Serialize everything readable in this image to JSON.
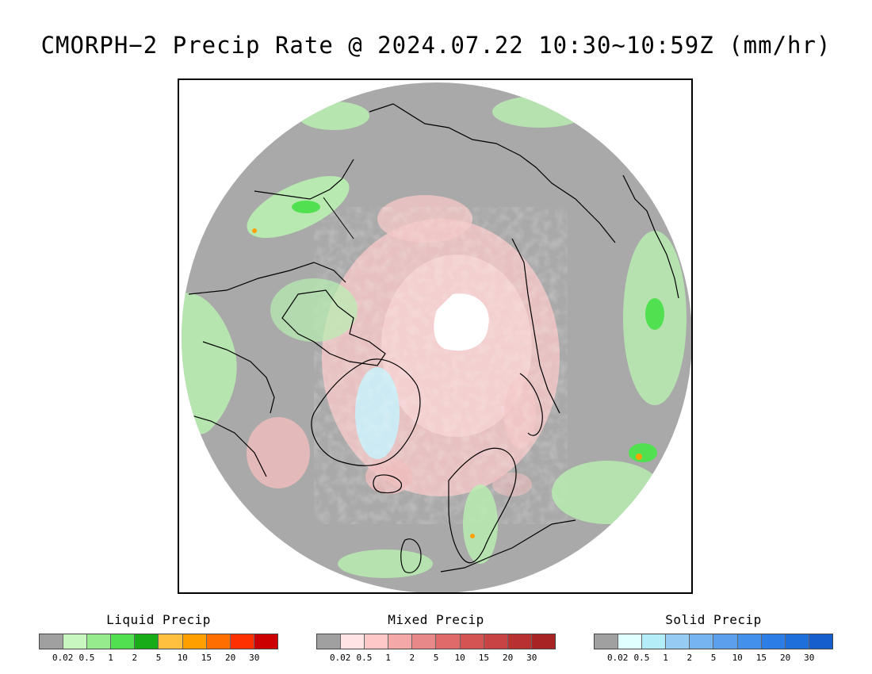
{
  "title": "CMORPH−2 Precip Rate @ 2024.07.22 10:30∼10:59Z (mm/hr)",
  "legends": [
    {
      "id": "liquid",
      "title": "Liquid Precip",
      "colors": [
        "#a0a0a0",
        "#c8f8c0",
        "#96ec8c",
        "#50e050",
        "#18ac18",
        "#ffc040",
        "#ffa000",
        "#ff6e00",
        "#ff3000",
        "#cc0000"
      ],
      "labels": [
        "0.02",
        "0.5",
        "1",
        "2",
        "5",
        "10",
        "15",
        "20",
        "30"
      ]
    },
    {
      "id": "mixed",
      "title": "Mixed Precip",
      "colors": [
        "#a0a0a0",
        "#ffe4e4",
        "#ffc8c8",
        "#f4a8a8",
        "#e88888",
        "#e06a6a",
        "#d45454",
        "#c84444",
        "#b83030",
        "#a82424"
      ],
      "labels": [
        "0.02",
        "0.5",
        "1",
        "2",
        "5",
        "10",
        "15",
        "20",
        "30"
      ]
    },
    {
      "id": "solid",
      "title": "Solid Precip",
      "colors": [
        "#a0a0a0",
        "#e0ffff",
        "#b4ecf8",
        "#96ccf4",
        "#76b4f0",
        "#5aa0ec",
        "#4290ea",
        "#2c7ee6",
        "#1e6edc",
        "#165ece"
      ],
      "labels": [
        "0.02",
        "0.5",
        "1",
        "2",
        "5",
        "10",
        "15",
        "20",
        "30"
      ]
    }
  ],
  "map": {
    "background_color": "#a9a9a9",
    "no_data_color": "#ffffff",
    "coastline_color": "#000000"
  }
}
